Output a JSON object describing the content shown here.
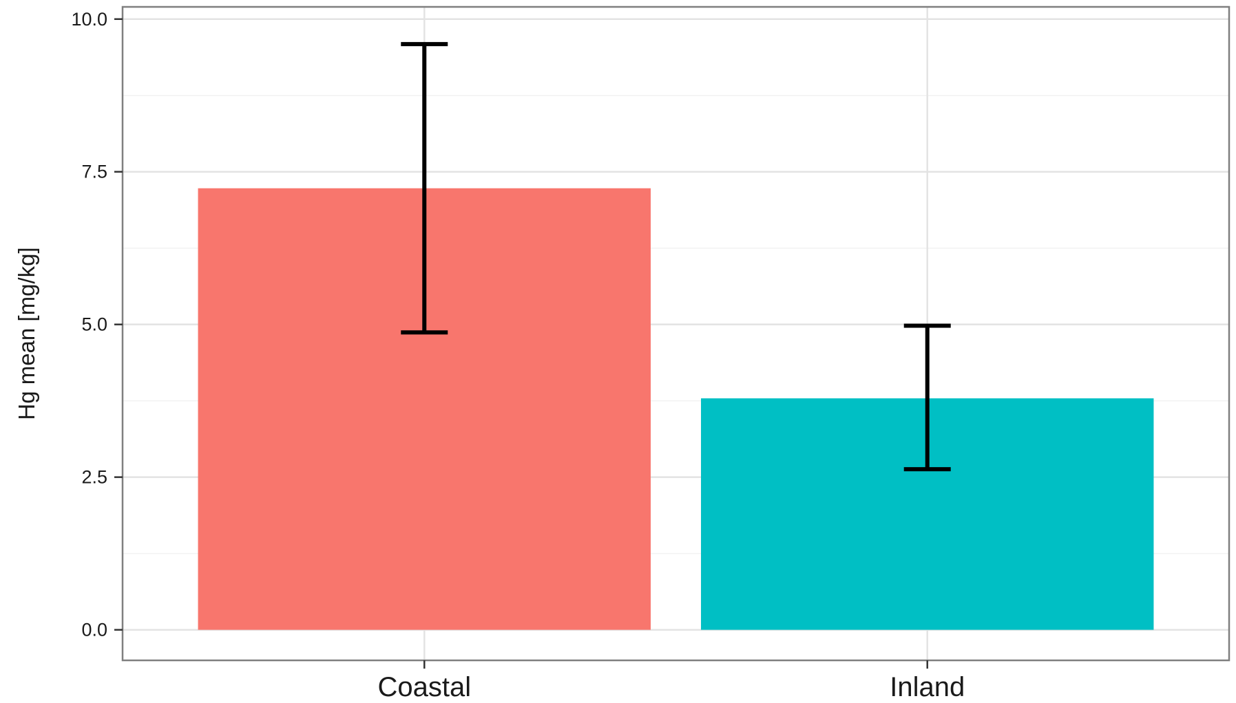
{
  "chart_data": {
    "type": "bar",
    "title": "",
    "xlabel": "",
    "ylabel": "Hg mean [mg/kg]",
    "categories": [
      "Coastal",
      "Inland"
    ],
    "values": [
      7.23,
      3.79
    ],
    "error_low": [
      4.87,
      2.63
    ],
    "error_high": [
      9.59,
      4.98
    ],
    "colors": [
      "#F8766D",
      "#00BFC4"
    ],
    "ylim": [
      -0.5,
      10.2
    ],
    "yticks": [
      0.0,
      2.5,
      5.0,
      7.5,
      10.0
    ],
    "ytick_labels": [
      "0.0",
      "2.5",
      "5.0",
      "7.5",
      "10.0"
    ],
    "grid": true,
    "legend": "none"
  }
}
